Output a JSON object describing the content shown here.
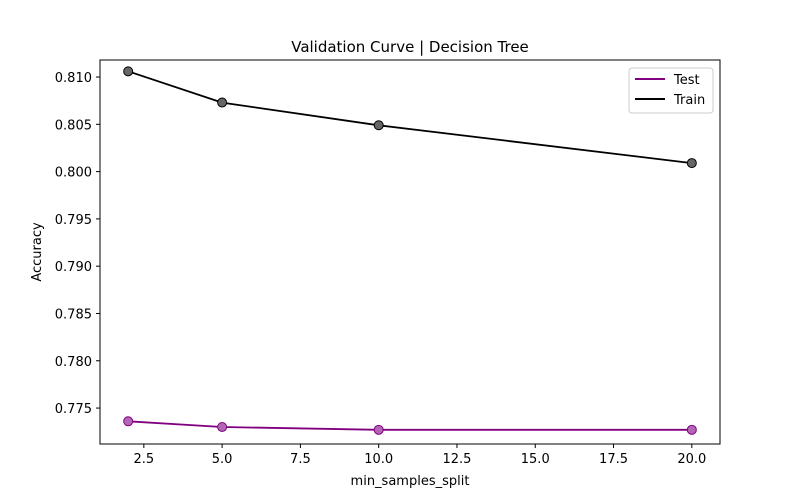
{
  "chart_data": {
    "type": "line",
    "title": "Validation Curve | Decision Tree",
    "xlabel": "min_samples_split",
    "ylabel": "Accuracy",
    "x": [
      2,
      5,
      10,
      20
    ],
    "xlim": [
      1.1,
      20.9
    ],
    "ylim": [
      0.7712,
      0.8118
    ],
    "xticks": [
      2.5,
      5.0,
      7.5,
      10.0,
      12.5,
      15.0,
      17.5,
      20.0
    ],
    "xtick_labels": [
      "2.5",
      "5.0",
      "7.5",
      "10.0",
      "12.5",
      "15.0",
      "17.5",
      "20.0"
    ],
    "yticks": [
      0.775,
      0.78,
      0.785,
      0.79,
      0.795,
      0.8,
      0.805,
      0.81
    ],
    "ytick_labels": [
      "0.775",
      "0.780",
      "0.785",
      "0.790",
      "0.795",
      "0.800",
      "0.805",
      "0.810"
    ],
    "grid": false,
    "legend_position": "top-right",
    "series": [
      {
        "name": "Test",
        "color": "#800080",
        "marker_color": "#b366b3",
        "values": [
          0.7736,
          0.773,
          0.7727,
          0.7727
        ]
      },
      {
        "name": "Train",
        "color": "#000000",
        "marker_color": "#666666",
        "values": [
          0.8106,
          0.8073,
          0.8049,
          0.8009
        ]
      }
    ]
  }
}
